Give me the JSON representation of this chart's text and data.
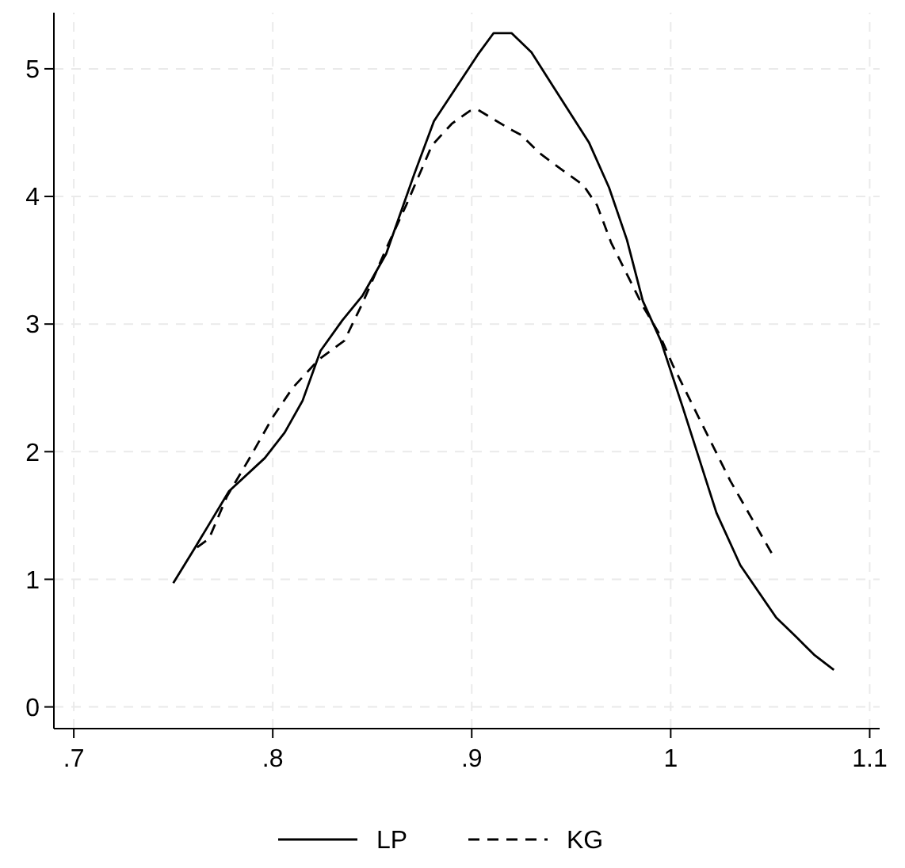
{
  "chart_data": {
    "type": "line",
    "grid": true,
    "legend": "bottom",
    "xlim": [
      0.69,
      1.105
    ],
    "ylim": [
      -0.17,
      5.44
    ],
    "xticks": [
      {
        "value": 0.7,
        "label": ".7"
      },
      {
        "value": 0.8,
        "label": ".8"
      },
      {
        "value": 0.9,
        "label": ".9"
      },
      1,
      1.1
    ],
    "yticks": [
      0,
      1,
      2,
      3,
      4,
      5
    ],
    "series": [
      {
        "name": "LP",
        "color": "#000000",
        "line_style": "solid",
        "x": [
          0.75,
          0.761,
          0.778,
          0.796,
          0.806,
          0.815,
          0.824,
          0.835,
          0.845,
          0.857,
          0.871,
          0.881,
          0.903,
          0.911,
          0.92,
          0.93,
          0.941,
          0.959,
          0.969,
          0.978,
          0.986,
          0.995,
          1.006,
          1.023,
          1.035,
          1.053,
          1.063,
          1.072,
          1.082
        ],
        "values": [
          0.97,
          1.25,
          1.69,
          1.95,
          2.15,
          2.4,
          2.79,
          3.03,
          3.22,
          3.55,
          4.17,
          4.59,
          5.11,
          5.28,
          5.28,
          5.13,
          4.86,
          4.42,
          4.07,
          3.66,
          3.18,
          2.87,
          2.35,
          1.52,
          1.11,
          0.7,
          0.55,
          0.41,
          0.29
        ]
      },
      {
        "name": "KG",
        "color": "#000000",
        "line_style": "dashed",
        "x": [
          0.762,
          0.768,
          0.777,
          0.788,
          0.8,
          0.81,
          0.823,
          0.836,
          0.845,
          0.857,
          0.867,
          0.88,
          0.89,
          0.899,
          0.903,
          0.919,
          0.925,
          0.934,
          0.947,
          0.956,
          0.963,
          0.97,
          0.986,
          0.994,
          1.001,
          1.014,
          1.03,
          1.052
        ],
        "values": [
          1.25,
          1.32,
          1.65,
          1.94,
          2.27,
          2.5,
          2.72,
          2.87,
          3.16,
          3.59,
          3.93,
          4.4,
          4.57,
          4.67,
          4.68,
          4.53,
          4.48,
          4.34,
          4.19,
          4.09,
          3.93,
          3.64,
          3.14,
          2.93,
          2.68,
          2.27,
          1.77,
          1.17
        ]
      }
    ]
  }
}
